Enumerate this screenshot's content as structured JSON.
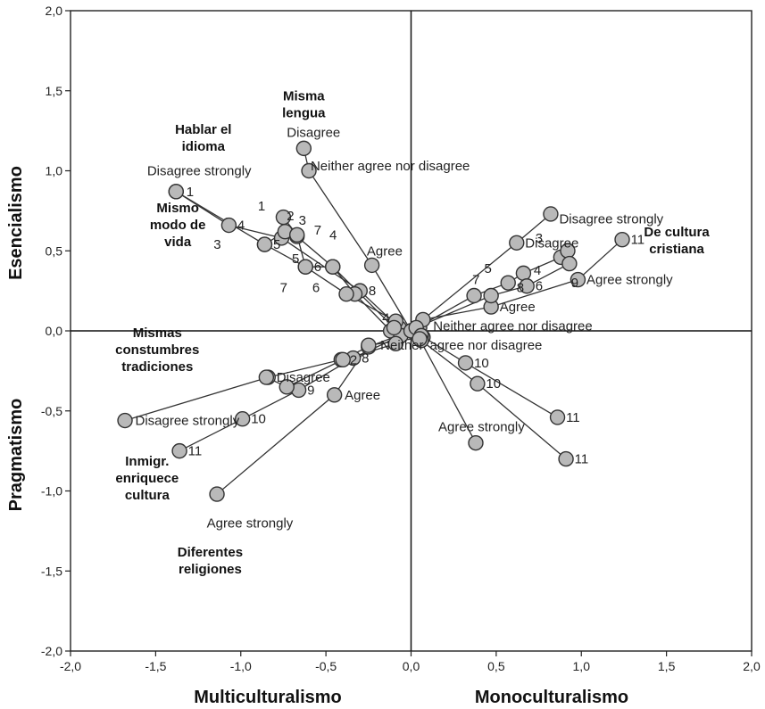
{
  "chart_data": {
    "type": "scatter",
    "title": "",
    "xlim": [
      -2.0,
      2.0
    ],
    "ylim": [
      -2.0,
      2.0
    ],
    "x_ticks": [
      "-2,0",
      "-1,5",
      "-1,0",
      "-0,5",
      "0,0",
      "0,5",
      "1,0",
      "1,5",
      "2,0"
    ],
    "y_ticks": [
      "2,0",
      "1,5",
      "1,0",
      "0,5",
      "0,0",
      "-0,5",
      "-1,0",
      "-1,5",
      "-2,0"
    ],
    "axis_titles": {
      "y_top": "Esencialismo",
      "y_bottom": "Pragmatismo",
      "x_left": "Multiculturalismo",
      "x_right": "Monoculturalismo"
    },
    "grid": false,
    "variables": [
      {
        "name": "Misma lengua",
        "label_at": [
          -0.63,
          1.44
        ],
        "points": [
          {
            "x": -0.63,
            "y": 1.14,
            "label": "Disagree",
            "lx": -0.73,
            "ly": 1.24
          },
          {
            "x": -0.6,
            "y": 1.0,
            "label": "Neither agree nor disagree",
            "lx": -0.59,
            "ly": 1.03
          },
          {
            "x": -0.23,
            "y": 0.41,
            "label": "Agree",
            "lx": -0.26,
            "ly": 0.5
          },
          {
            "x": 0.0,
            "y": 0.0,
            "label": "",
            "lx": 0,
            "ly": 0
          }
        ]
      },
      {
        "name": "Hablar el idioma",
        "label_at": [
          -1.22,
          1.23
        ],
        "points": [
          {
            "x": -1.38,
            "y": 0.87,
            "label": "1",
            "lx": -1.32,
            "ly": 0.87
          },
          {
            "x": -1.07,
            "y": 0.66,
            "label": "4",
            "lx": -1.02,
            "ly": 0.66
          },
          {
            "x": -0.76,
            "y": 0.58,
            "label": "7",
            "lx": -0.57,
            "ly": 0.63
          },
          {
            "x": -0.3,
            "y": 0.25,
            "label": "8",
            "lx": -0.25,
            "ly": 0.25
          },
          {
            "x": -0.07,
            "y": 0.02,
            "label": "",
            "lx": 0,
            "ly": 0
          }
        ]
      },
      {
        "name": "Mismo modo de vida",
        "label_at": [
          -1.37,
          0.74
        ],
        "points": [
          {
            "x": -1.38,
            "y": 0.87,
            "label": "Disagree strongly",
            "lx": -1.55,
            "ly": 1.0
          },
          {
            "x": -0.86,
            "y": 0.54,
            "label": "5",
            "lx": -0.81,
            "ly": 0.54
          },
          {
            "x": -0.74,
            "y": 0.62,
            "label": "2",
            "lx": -0.73,
            "ly": 0.72
          },
          {
            "x": -0.67,
            "y": 0.59,
            "label": "3",
            "lx": -0.66,
            "ly": 0.69
          },
          {
            "x": -0.46,
            "y": 0.4,
            "label": "4",
            "lx": -0.48,
            "ly": 0.6
          },
          {
            "x": -0.33,
            "y": 0.23,
            "label": "",
            "lx": 0,
            "ly": 0
          },
          {
            "x": -0.12,
            "y": 0.0,
            "label": "",
            "lx": 0,
            "ly": 0
          }
        ]
      },
      {
        "name": "Mismas constumbres tradiciones",
        "label_at": [
          -1.49,
          -0.04
        ],
        "points": [
          {
            "x": -1.68,
            "y": -0.56,
            "label": "Disagree strongly",
            "lx": -1.62,
            "ly": -0.56
          },
          {
            "x": -0.84,
            "y": -0.29,
            "label": "Disagree",
            "lx": -0.79,
            "ly": -0.29
          },
          {
            "x": -0.41,
            "y": -0.18,
            "label": "2",
            "lx": -0.36,
            "ly": -0.18
          },
          {
            "x": -0.25,
            "y": -0.1,
            "label": "",
            "lx": 0,
            "ly": 0
          },
          {
            "x": 0.05,
            "y": 0.02,
            "label": "",
            "lx": 0,
            "ly": 0
          }
        ]
      },
      {
        "name": "Inmigr. enriquece cultura",
        "label_at": [
          -1.55,
          -0.84
        ],
        "points": [
          {
            "x": -1.36,
            "y": -0.75,
            "label": "11",
            "lx": -1.31,
            "ly": -0.75
          },
          {
            "x": -0.99,
            "y": -0.55,
            "label": "10",
            "lx": -0.94,
            "ly": -0.55
          },
          {
            "x": -0.66,
            "y": -0.37,
            "label": "9",
            "lx": -0.61,
            "ly": -0.37
          },
          {
            "x": -0.34,
            "y": -0.17,
            "label": "8",
            "lx": -0.29,
            "ly": -0.17
          },
          {
            "x": -0.06,
            "y": -0.03,
            "label": "",
            "lx": 0,
            "ly": 0
          }
        ]
      },
      {
        "name": "Diferentes religiones",
        "label_at": [
          -1.18,
          -1.41
        ],
        "points": [
          {
            "x": -1.14,
            "y": -1.02,
            "label": "Agree strongly",
            "lx": -1.2,
            "ly": -1.2
          },
          {
            "x": -0.45,
            "y": -0.4,
            "label": "Agree",
            "lx": -0.39,
            "ly": -0.4
          },
          {
            "x": -0.25,
            "y": -0.09,
            "label": "Neither",
            "lx": -0.18,
            "ly": -0.09
          },
          {
            "x": 0.07,
            "y": -0.04,
            "label": "",
            "lx": 0,
            "ly": 0
          }
        ]
      },
      {
        "name": "De cultura cristiana",
        "label_at": [
          1.56,
          0.59
        ],
        "points": [
          {
            "x": 0.82,
            "y": 0.73,
            "label": "Disagree strongly",
            "lx": 0.87,
            "ly": 0.7
          },
          {
            "x": 0.62,
            "y": 0.55,
            "label": "Disagree",
            "lx": 0.67,
            "ly": 0.55
          },
          {
            "x": 0.07,
            "y": 0.07,
            "label": "Neither agree nor disagree",
            "lx": 0.13,
            "ly": 0.03
          },
          {
            "x": 0.47,
            "y": 0.15,
            "label": "Agree",
            "lx": 0.52,
            "ly": 0.15
          },
          {
            "x": 0.98,
            "y": 0.32,
            "label": "Agree strongly",
            "lx": 1.03,
            "ly": 0.32
          },
          {
            "x": 1.24,
            "y": 0.57,
            "label": "11",
            "lx": 1.29,
            "ly": 0.57
          }
        ]
      },
      {
        "name": "",
        "label_at": [
          0,
          0
        ],
        "points": [
          {
            "x": 0.0,
            "y": 0.0,
            "label": "",
            "lx": 0,
            "ly": 0
          },
          {
            "x": 0.37,
            "y": 0.22,
            "label": "7",
            "lx": 0.36,
            "ly": 0.32
          },
          {
            "x": 0.57,
            "y": 0.3,
            "label": "8",
            "lx": 0.62,
            "ly": 0.27
          },
          {
            "x": 0.66,
            "y": 0.36,
            "label": "4",
            "lx": 0.72,
            "ly": 0.38
          },
          {
            "x": 0.88,
            "y": 0.46,
            "label": "9",
            "lx": 0.94,
            "ly": 0.3
          },
          {
            "x": 0.92,
            "y": 0.5,
            "label": "",
            "lx": 0,
            "ly": 0
          }
        ]
      },
      {
        "name": "",
        "label_at": [
          0,
          0
        ],
        "points": [
          {
            "x": 0.03,
            "y": 0.02,
            "label": "",
            "lx": 0,
            "ly": 0
          },
          {
            "x": 0.47,
            "y": 0.22,
            "label": "5",
            "lx": 0.43,
            "ly": 0.39
          },
          {
            "x": 0.68,
            "y": 0.28,
            "label": "6",
            "lx": 0.73,
            "ly": 0.28
          },
          {
            "x": 0.93,
            "y": 0.42,
            "label": "3",
            "lx": 0.73,
            "ly": 0.58
          }
        ]
      },
      {
        "name": "",
        "label_at": [
          0,
          0
        ],
        "points": [
          {
            "x": 0.06,
            "y": -0.03,
            "label": "agree nor disagree",
            "lx": 0.11,
            "ly": -0.09
          },
          {
            "x": 0.32,
            "y": -0.2,
            "label": "10",
            "lx": 0.37,
            "ly": -0.2
          },
          {
            "x": 0.86,
            "y": -0.54,
            "label": "11",
            "lx": 0.91,
            "ly": -0.54
          }
        ]
      },
      {
        "name": "",
        "label_at": [
          0,
          0
        ],
        "points": [
          {
            "x": 0.06,
            "y": -0.06,
            "label": "",
            "lx": 0,
            "ly": 0
          },
          {
            "x": 0.39,
            "y": -0.33,
            "label": "10",
            "lx": 0.44,
            "ly": -0.33
          },
          {
            "x": 0.91,
            "y": -0.8,
            "label": "11",
            "lx": 0.96,
            "ly": -0.8
          }
        ]
      },
      {
        "name": "",
        "label_at": [
          0,
          0
        ],
        "points": [
          {
            "x": 0.05,
            "y": -0.05,
            "label": "",
            "lx": 0,
            "ly": 0
          },
          {
            "x": 0.38,
            "y": -0.7,
            "label": "Agree strongly",
            "lx": 0.16,
            "ly": -0.6
          }
        ]
      },
      {
        "name": "",
        "label_at": [
          0,
          0
        ],
        "points": [
          {
            "x": -0.86,
            "y": 0.54,
            "label": "3",
            "lx": -1.16,
            "ly": 0.54
          },
          {
            "x": -0.62,
            "y": 0.4,
            "label": "6",
            "lx": -0.57,
            "ly": 0.4
          },
          {
            "x": -0.38,
            "y": 0.23,
            "label": "",
            "lx": 0,
            "ly": 0
          },
          {
            "x": -0.09,
            "y": 0.06,
            "label": "4",
            "lx": -0.17,
            "ly": 0.08
          }
        ]
      },
      {
        "name": "",
        "label_at": [
          0,
          0
        ],
        "points": [
          {
            "x": -0.75,
            "y": 0.71,
            "label": "1",
            "lx": -0.9,
            "ly": 0.78
          },
          {
            "x": -0.67,
            "y": 0.6,
            "label": "5",
            "lx": -0.7,
            "ly": 0.45
          },
          {
            "x": -0.62,
            "y": 0.4,
            "label": "7",
            "lx": -0.77,
            "ly": 0.27
          },
          {
            "x": -0.46,
            "y": 0.4,
            "label": "6",
            "lx": -0.58,
            "ly": 0.27
          },
          {
            "x": -0.1,
            "y": 0.02,
            "label": "",
            "lx": 0,
            "ly": 0
          }
        ]
      },
      {
        "name": "",
        "label_at": [
          0,
          0
        ],
        "points": [
          {
            "x": -0.85,
            "y": -0.29,
            "label": "",
            "lx": 0,
            "ly": 0
          },
          {
            "x": -0.73,
            "y": -0.35,
            "label": "",
            "lx": 0,
            "ly": 0
          },
          {
            "x": -0.4,
            "y": -0.18,
            "label": "",
            "lx": 0,
            "ly": 0
          },
          {
            "x": -0.09,
            "y": -0.08,
            "label": "",
            "lx": 0,
            "ly": 0
          }
        ]
      }
    ]
  },
  "colors": {
    "marker_fill": "#b9b9b9",
    "marker_stroke": "#333333",
    "text": "#111111"
  }
}
